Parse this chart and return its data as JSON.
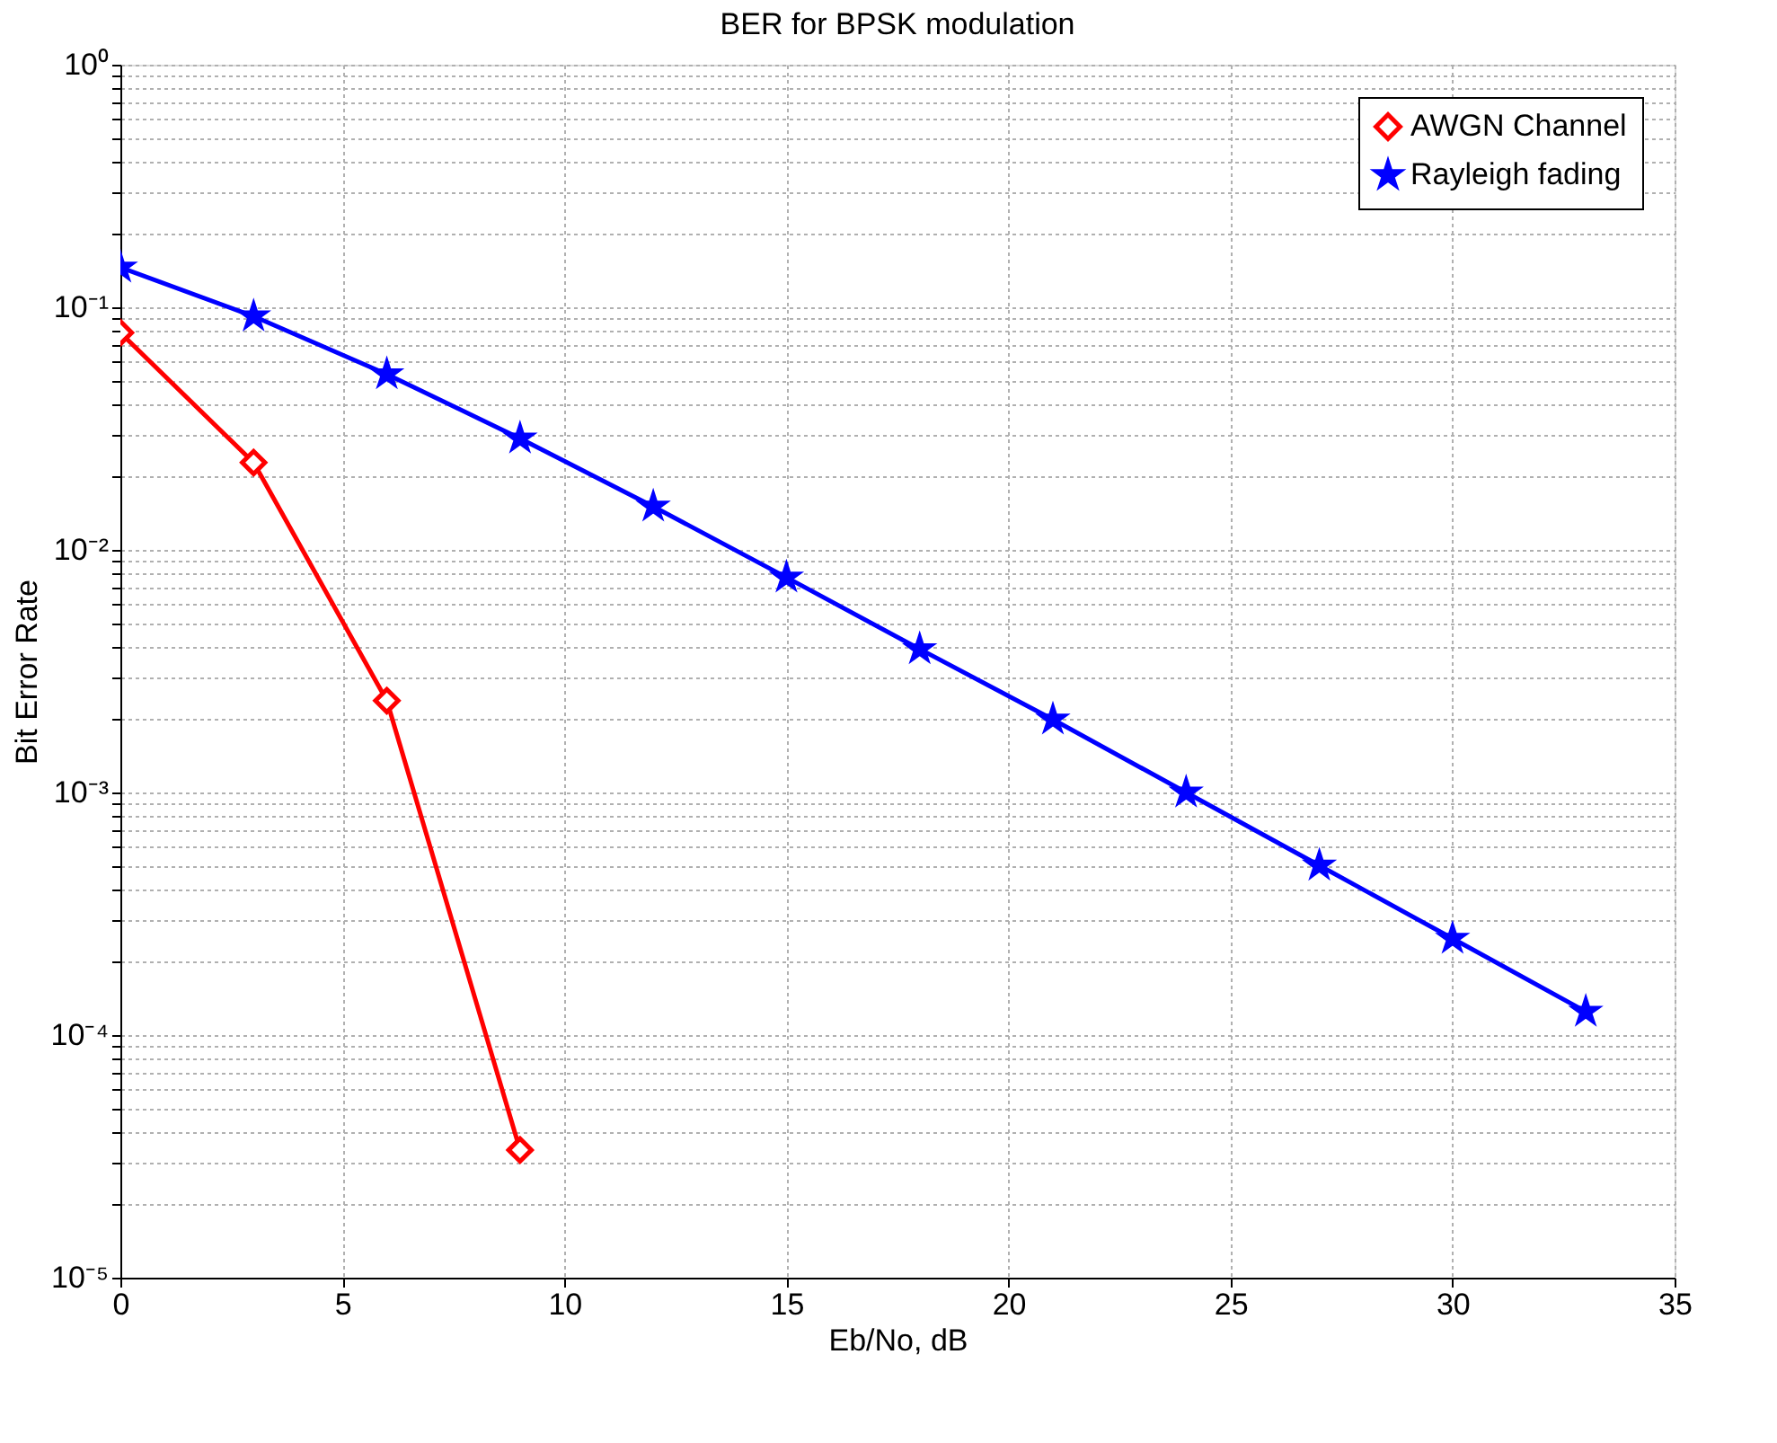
{
  "chart_data": {
    "type": "line",
    "title": "BER for BPSK modulation",
    "xlabel": "Eb/No, dB",
    "ylabel": "Bit Error Rate",
    "log": "y",
    "grid": true,
    "legend": "top right",
    "line_style": "solid",
    "xlim": [
      0,
      35
    ],
    "xticks": [
      0,
      5,
      10,
      15,
      20,
      25,
      30,
      35
    ],
    "ylim": [
      1e-05,
      1
    ],
    "yticks": [
      {
        "value": 1e-05,
        "label": "10⁻⁵"
      },
      {
        "value": 2e-05,
        "label": null
      },
      {
        "value": 3e-05,
        "label": null
      },
      {
        "value": 4e-05,
        "label": null
      },
      {
        "value": 5e-05,
        "label": null
      },
      {
        "value": 6e-05,
        "label": null
      },
      {
        "value": 7e-05,
        "label": null
      },
      {
        "value": 8e-05,
        "label": null
      },
      {
        "value": 9e-05,
        "label": null
      },
      {
        "value": 0.0001,
        "label": "10⁻⁴"
      },
      {
        "value": 0.0002,
        "label": null
      },
      {
        "value": 0.0003,
        "label": null
      },
      {
        "value": 0.0004,
        "label": null
      },
      {
        "value": 0.0005,
        "label": null
      },
      {
        "value": 0.0006,
        "label": null
      },
      {
        "value": 0.0007,
        "label": null
      },
      {
        "value": 0.0008,
        "label": null
      },
      {
        "value": 0.0009,
        "label": null
      },
      {
        "value": 0.001,
        "label": "10⁻³"
      },
      {
        "value": 0.002,
        "label": null
      },
      {
        "value": 0.003,
        "label": null
      },
      {
        "value": 0.004,
        "label": null
      },
      {
        "value": 0.005,
        "label": null
      },
      {
        "value": 0.006,
        "label": null
      },
      {
        "value": 0.007,
        "label": null
      },
      {
        "value": 0.008,
        "label": null
      },
      {
        "value": 0.009,
        "label": null
      },
      {
        "value": 0.01,
        "label": "10⁻²"
      },
      {
        "value": 0.02,
        "label": null
      },
      {
        "value": 0.03,
        "label": null
      },
      {
        "value": 0.04,
        "label": null
      },
      {
        "value": 0.05,
        "label": null
      },
      {
        "value": 0.06,
        "label": null
      },
      {
        "value": 0.07,
        "label": null
      },
      {
        "value": 0.08,
        "label": null
      },
      {
        "value": 0.09,
        "label": null
      },
      {
        "value": 0.1,
        "label": "10⁻¹"
      },
      {
        "value": 0.2,
        "label": null
      },
      {
        "value": 0.3,
        "label": null
      },
      {
        "value": 0.4,
        "label": null
      },
      {
        "value": 0.5,
        "label": null
      },
      {
        "value": 0.6,
        "label": null
      },
      {
        "value": 0.7,
        "label": null
      },
      {
        "value": 0.8,
        "label": null
      },
      {
        "value": 0.9,
        "label": null
      },
      {
        "value": 1,
        "label": "10⁰"
      }
    ],
    "series": [
      {
        "name": "AWGN Channel",
        "color": "#ff0000",
        "marker": "diamond",
        "x": [
          0,
          3,
          6,
          9
        ],
        "values": [
          0.0786,
          0.0229,
          0.00239,
          3.36e-05
        ]
      },
      {
        "name": "Rayleigh fading",
        "color": "#0000ff",
        "marker": "star",
        "x": [
          0,
          3,
          6,
          9,
          12,
          15,
          18,
          21,
          24,
          27,
          30,
          33
        ],
        "values": [
          0.146,
          0.0918,
          0.053,
          0.0288,
          0.0151,
          0.0077,
          0.0039,
          0.002,
          0.001,
          0.0005,
          0.00025,
          0.000125
        ]
      }
    ]
  }
}
